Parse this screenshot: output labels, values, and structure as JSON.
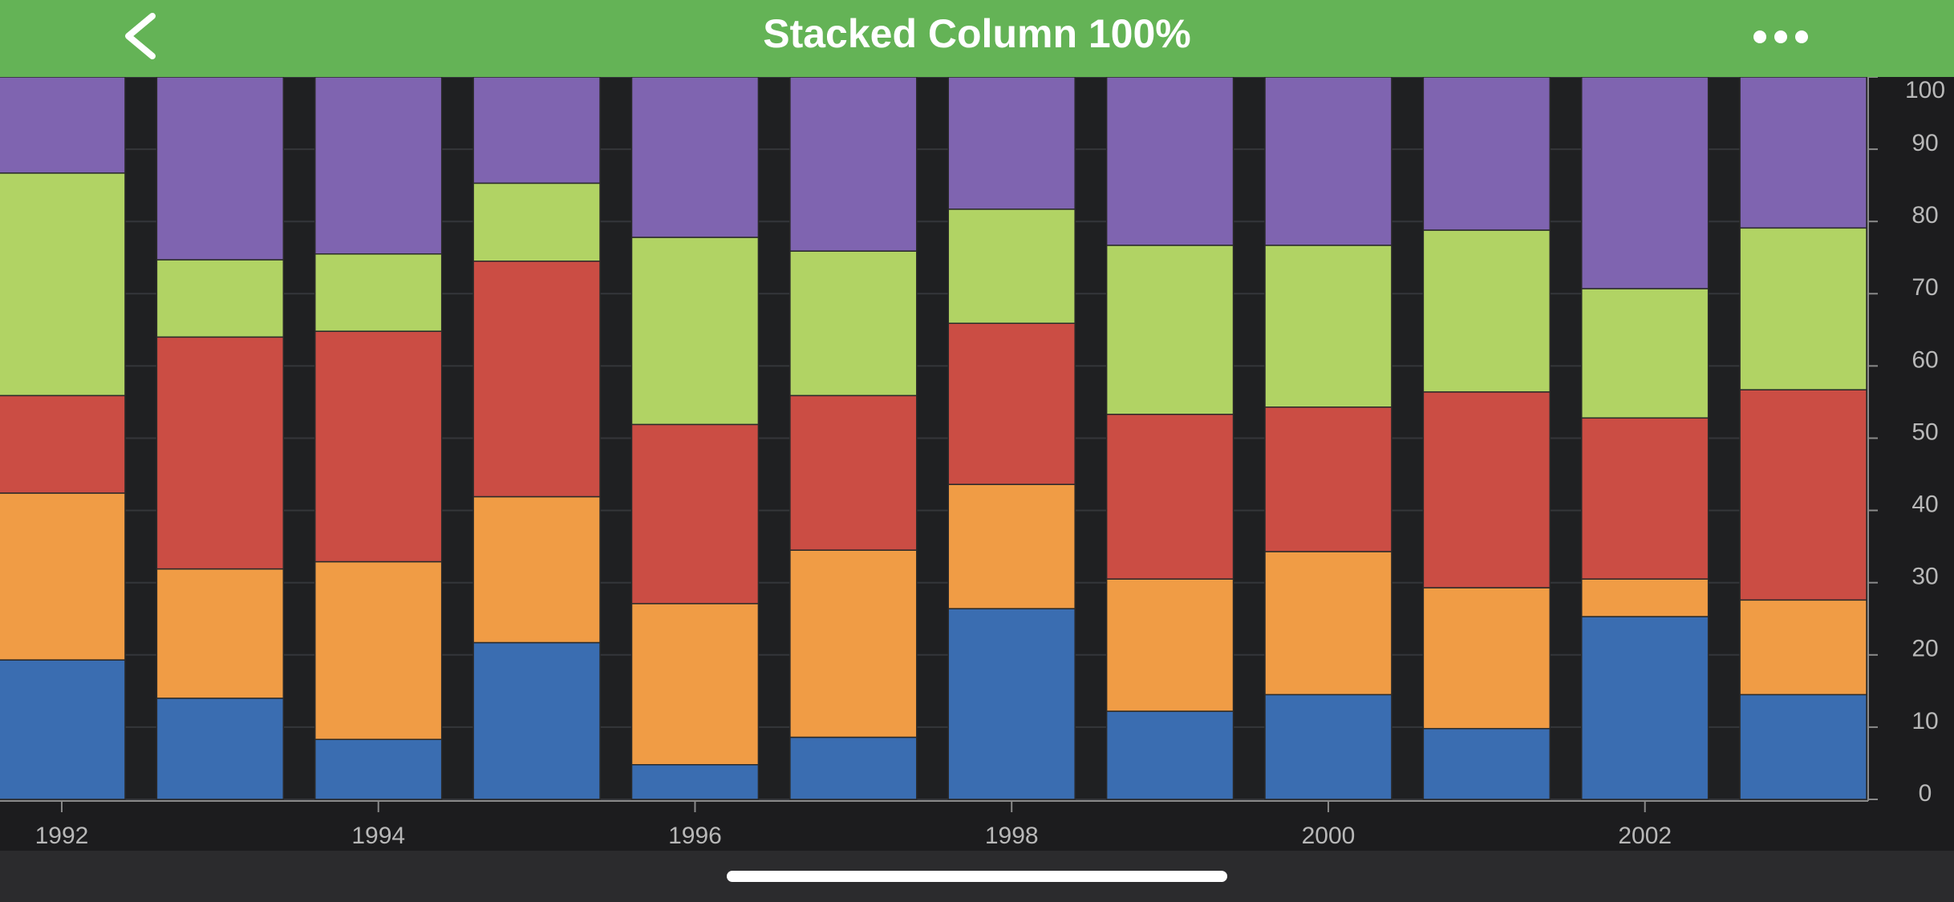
{
  "header": {
    "title": "Stacked Column 100%"
  },
  "chart_data": {
    "type": "stacked-bar-100",
    "x": [
      1992,
      1993,
      1994,
      1995,
      1996,
      1997,
      1998,
      1999,
      2000,
      2001,
      2002,
      2003
    ],
    "series": [
      {
        "color": "#3a6db1",
        "values": [
          19.3,
          14.0,
          8.3,
          21.7,
          4.8,
          8.6,
          26.4,
          12.2,
          14.5,
          9.8,
          25.3,
          14.5
        ]
      },
      {
        "color": "#f09c45",
        "values": [
          23.1,
          17.9,
          24.6,
          20.2,
          22.3,
          25.9,
          17.2,
          18.3,
          19.8,
          19.5,
          5.2,
          13.1
        ]
      },
      {
        "color": "#cb4d44",
        "values": [
          13.5,
          32.1,
          31.9,
          32.6,
          24.8,
          21.4,
          22.3,
          22.8,
          20.0,
          27.1,
          22.3,
          29.1
        ]
      },
      {
        "color": "#b1d364",
        "values": [
          30.8,
          10.7,
          10.7,
          10.8,
          25.9,
          20.0,
          15.8,
          23.4,
          22.4,
          22.4,
          17.9,
          22.4
        ]
      },
      {
        "color": "#7f64b0",
        "values": [
          13.3,
          25.3,
          24.5,
          14.7,
          22.2,
          24.1,
          18.3,
          23.3,
          23.3,
          21.2,
          29.3,
          20.9
        ]
      }
    ],
    "xlim": [
      1991.61,
      2003.41
    ],
    "xticks": [
      1992,
      1994,
      1996,
      1998,
      2000,
      2002
    ],
    "ylim": [
      0,
      100
    ],
    "yticks": [
      0,
      10,
      20,
      30,
      40,
      50,
      60,
      70,
      80,
      90,
      100
    ],
    "grid": true
  }
}
